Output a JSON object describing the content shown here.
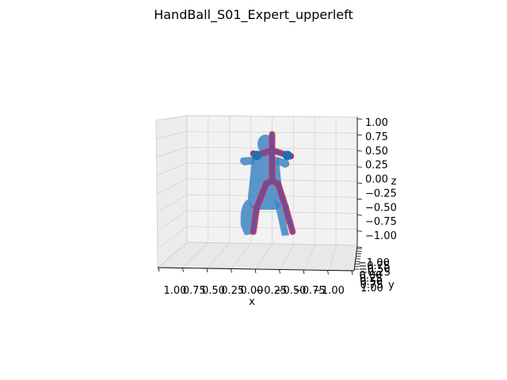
{
  "chart_data": {
    "type": "3d-skeleton",
    "title": "HandBall_S01_Expert_upperleft",
    "xlabel": "x",
    "ylabel": "y",
    "zlabel": "z",
    "x_ticks": [
      "1.00",
      "0.75",
      "0.50",
      "0.25",
      "0.00",
      "−0.25",
      "−0.50",
      "−0.75",
      "−1.00"
    ],
    "z_ticks": [
      "1.00",
      "0.75",
      "0.50",
      "0.25",
      "0.00",
      "−0.25",
      "−0.50",
      "−0.75",
      "−1.00"
    ],
    "y_ticks": [
      "−1.00",
      "−0.75",
      "−0.50",
      "−0.25",
      "0.00",
      "0.25",
      "0.50",
      "0.75",
      "1.00"
    ],
    "xlim": [
      1.0,
      -1.0
    ],
    "ylim": [
      -1.0,
      1.0
    ],
    "zlim": [
      -1.0,
      1.0
    ],
    "grid": true,
    "colors": {
      "body_mesh": "#3f86c4",
      "bones": "#6a4f9b",
      "joints": "#d6274a",
      "hands": "#1f6fb4",
      "pane": "#f2f2f2",
      "grid": "#cfcfcf"
    },
    "joints": [
      {
        "name": "head",
        "x": 0.0,
        "z": 0.72
      },
      {
        "name": "neck",
        "x": 0.0,
        "z": 0.47
      },
      {
        "name": "right_shoulder",
        "x": 0.17,
        "z": 0.4
      },
      {
        "name": "right_elbow",
        "x": 0.22,
        "z": 0.42
      },
      {
        "name": "right_wrist",
        "x": 0.18,
        "z": 0.39
      },
      {
        "name": "left_shoulder",
        "x": -0.17,
        "z": 0.4
      },
      {
        "name": "left_elbow",
        "x": -0.22,
        "z": 0.38
      },
      {
        "name": "left_wrist",
        "x": -0.18,
        "z": 0.39
      },
      {
        "name": "spine",
        "x": 0.0,
        "z": 0.2
      },
      {
        "name": "pelvis",
        "x": 0.0,
        "z": 0.0
      },
      {
        "name": "right_hip",
        "x": 0.07,
        "z": -0.05
      },
      {
        "name": "right_knee",
        "x": 0.18,
        "z": -0.42
      },
      {
        "name": "right_ankle",
        "x": 0.22,
        "z": -0.8
      },
      {
        "name": "left_hip",
        "x": -0.07,
        "z": -0.05
      },
      {
        "name": "left_knee",
        "x": -0.16,
        "z": -0.42
      },
      {
        "name": "left_ankle",
        "x": -0.24,
        "z": -0.8
      }
    ],
    "bones": [
      [
        "head",
        "neck"
      ],
      [
        "neck",
        "spine"
      ],
      [
        "spine",
        "pelvis"
      ],
      [
        "neck",
        "right_shoulder"
      ],
      [
        "right_shoulder",
        "right_elbow"
      ],
      [
        "right_elbow",
        "right_wrist"
      ],
      [
        "neck",
        "left_shoulder"
      ],
      [
        "left_shoulder",
        "left_elbow"
      ],
      [
        "left_elbow",
        "left_wrist"
      ],
      [
        "pelvis",
        "right_hip"
      ],
      [
        "right_hip",
        "right_knee"
      ],
      [
        "right_knee",
        "right_ankle"
      ],
      [
        "pelvis",
        "left_hip"
      ],
      [
        "left_hip",
        "left_knee"
      ],
      [
        "left_knee",
        "left_ankle"
      ]
    ]
  }
}
